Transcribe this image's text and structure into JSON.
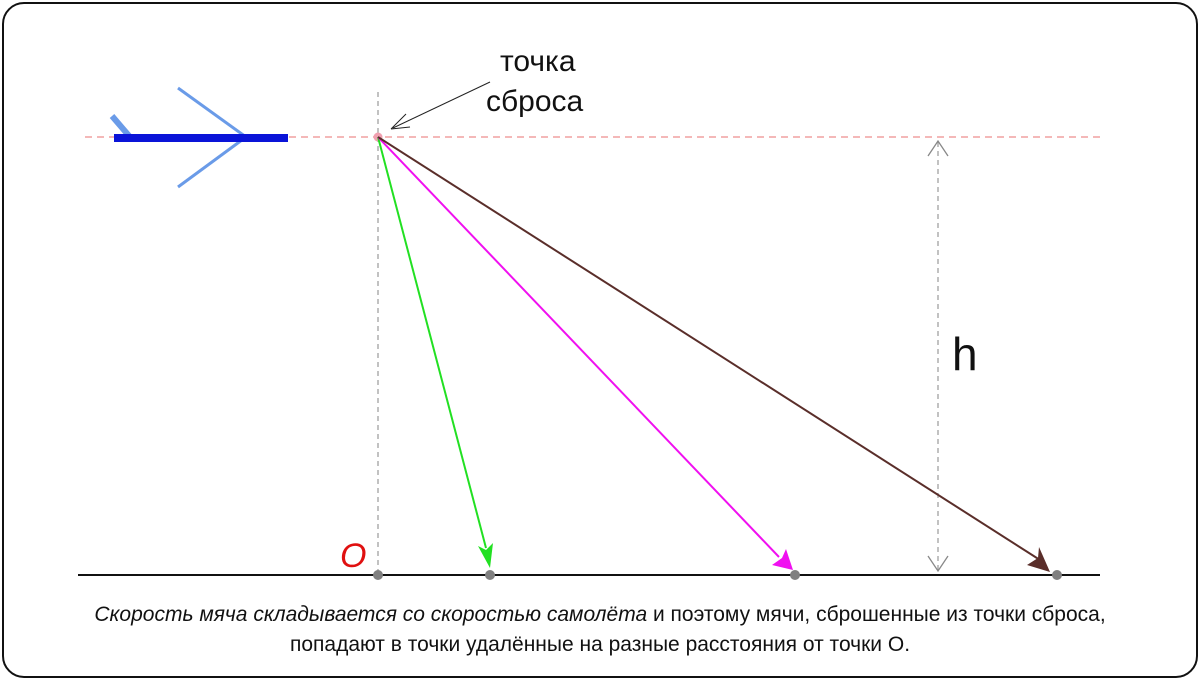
{
  "drop_point_label": {
    "line1": "точка",
    "line2": "сброса"
  },
  "height_label": "h",
  "origin_label": "O",
  "caption": {
    "italic_part": "Скорость мяча складывается со скоростью самолёта",
    "rest_line1": " и поэтому мячи, сброшенные из точки сброса,",
    "line2": "попадают в точки удалённые на разные расстояния от точки О."
  },
  "colors": {
    "plane_body": "#0a14d8",
    "plane_wing": "#6a9be8",
    "trajectory_1": "#22e022",
    "trajectory_2": "#f010f0",
    "trajectory_3": "#5a2e2a",
    "origin_label": "#e01010",
    "horizontal_guide": "#f0a0a0",
    "ground": "#111111",
    "ground_dot": "#808080"
  }
}
